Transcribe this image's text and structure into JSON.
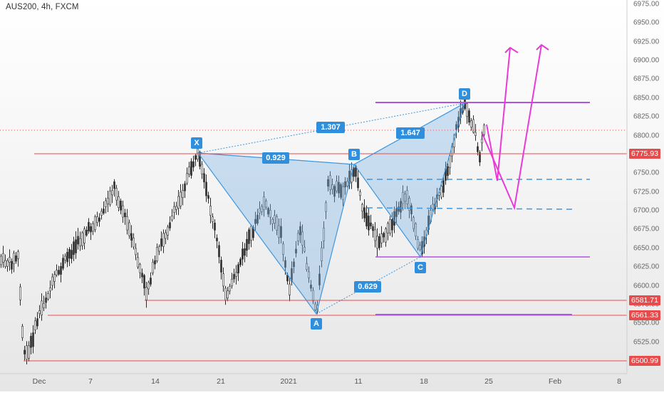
{
  "ticker": "AUS200, 4h, FXCM",
  "y_axis": {
    "ticks": [
      "6975.00",
      "6950.00",
      "6925.00",
      "6900.00",
      "6875.00",
      "6850.00",
      "6825.00",
      "6800.00",
      "6775.00",
      "6750.00",
      "6725.00",
      "6700.00",
      "6675.00",
      "6650.00",
      "6625.00",
      "6600.00",
      "6575.00",
      "6550.00",
      "6525.00",
      "6500.00"
    ]
  },
  "x_axis": {
    "ticks": [
      "Dec",
      "7",
      "14",
      "21",
      "2021",
      "11",
      "18",
      "25",
      "Feb",
      "8"
    ]
  },
  "price_tags": [
    "6775.93",
    "6581.71",
    "6561.33",
    "6500.99"
  ],
  "pattern_points": {
    "x": "X",
    "a": "A",
    "b": "B",
    "c": "C",
    "d": "D"
  },
  "ratios": {
    "xa_xb": "0.929",
    "xa_ad": "1.307",
    "ab_ac": "0.629",
    "bc_bd": "1.647"
  },
  "colors": {
    "accent": "#2f8fdc",
    "price_line": "#e84b4b",
    "projection": "#e83ad6",
    "level": "#b054e0",
    "candle_up": "#26a69a",
    "candle_down": "#26a69a"
  }
}
